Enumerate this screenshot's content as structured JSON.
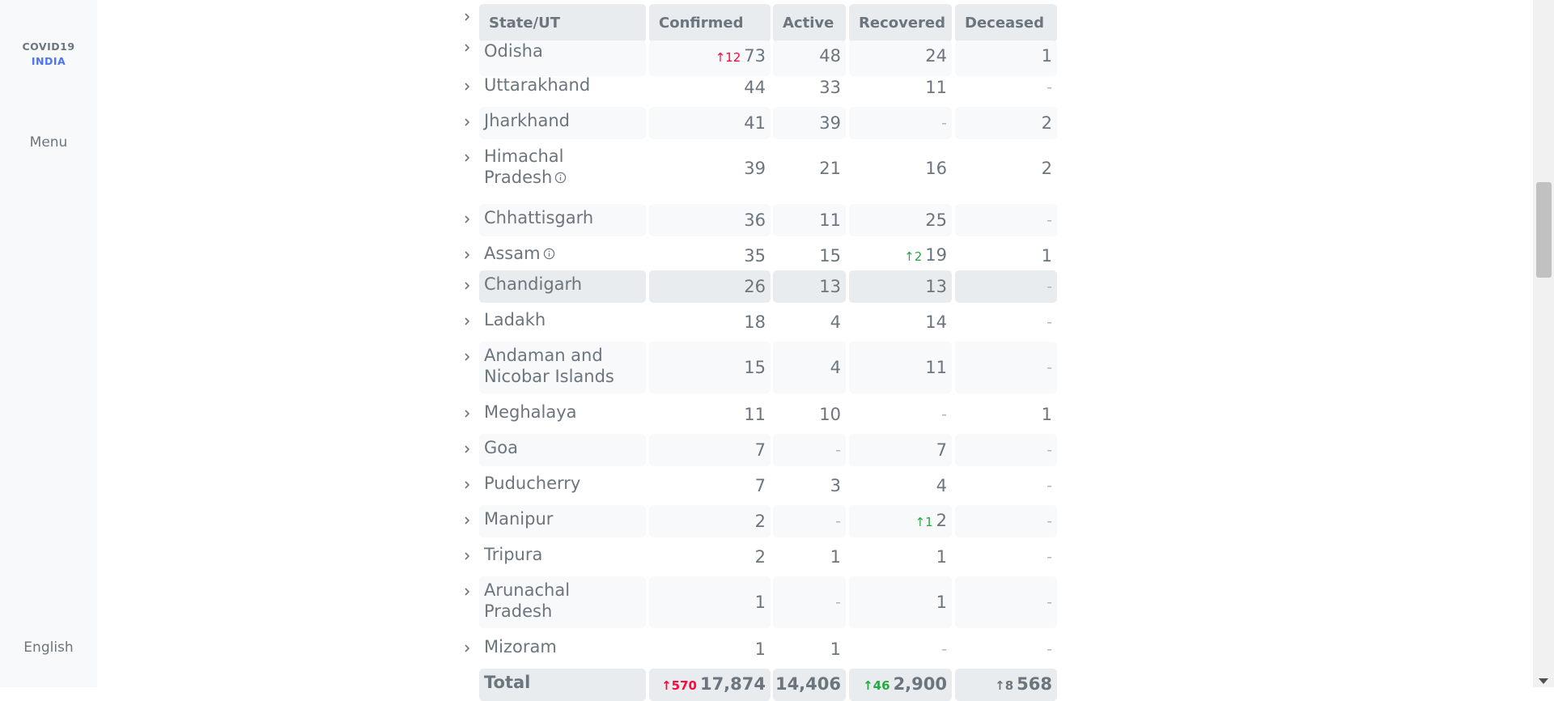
{
  "sidebar": {
    "brand_line1": "COVID19",
    "brand_line2": "INDIA",
    "menu_label": "Menu",
    "language_label": "English"
  },
  "table": {
    "headers": {
      "state": "State/UT",
      "confirmed": "Confirmed",
      "active": "Active",
      "recovered": "Recovered",
      "deceased": "Deceased"
    },
    "rows": [
      {
        "name_l1": "Odisha",
        "name_l2": "",
        "confirmed": "73",
        "confirmed_delta": "↑12",
        "active": "48",
        "recovered": "24",
        "recovered_delta": "",
        "deceased": "1",
        "deceased_delta": ""
      },
      {
        "name_l1": "Uttarakhand",
        "name_l2": "",
        "confirmed": "44",
        "confirmed_delta": "",
        "active": "33",
        "recovered": "11",
        "recovered_delta": "",
        "deceased": "-",
        "deceased_delta": ""
      },
      {
        "name_l1": "Jharkhand",
        "name_l2": "",
        "confirmed": "41",
        "confirmed_delta": "",
        "active": "39",
        "recovered": "-",
        "recovered_delta": "",
        "deceased": "2",
        "deceased_delta": ""
      },
      {
        "name_l1": "Himachal",
        "name_l2": "Pradesh",
        "confirmed": "39",
        "confirmed_delta": "",
        "active": "21",
        "recovered": "16",
        "recovered_delta": "",
        "deceased": "2",
        "deceased_delta": ""
      },
      {
        "name_l1": "Chhattisgarh",
        "name_l2": "",
        "confirmed": "36",
        "confirmed_delta": "",
        "active": "11",
        "recovered": "25",
        "recovered_delta": "",
        "deceased": "-",
        "deceased_delta": ""
      },
      {
        "name_l1": "Assam",
        "name_l2": "",
        "confirmed": "35",
        "confirmed_delta": "",
        "active": "15",
        "recovered": "19",
        "recovered_delta": "↑2",
        "deceased": "1",
        "deceased_delta": ""
      },
      {
        "name_l1": "Chandigarh",
        "name_l2": "",
        "confirmed": "26",
        "confirmed_delta": "",
        "active": "13",
        "recovered": "13",
        "recovered_delta": "",
        "deceased": "-",
        "deceased_delta": ""
      },
      {
        "name_l1": "Ladakh",
        "name_l2": "",
        "confirmed": "18",
        "confirmed_delta": "",
        "active": "4",
        "recovered": "14",
        "recovered_delta": "",
        "deceased": "-",
        "deceased_delta": ""
      },
      {
        "name_l1": "Andaman and",
        "name_l2": "Nicobar Islands",
        "confirmed": "15",
        "confirmed_delta": "",
        "active": "4",
        "recovered": "11",
        "recovered_delta": "",
        "deceased": "-",
        "deceased_delta": ""
      },
      {
        "name_l1": "Meghalaya",
        "name_l2": "",
        "confirmed": "11",
        "confirmed_delta": "",
        "active": "10",
        "recovered": "-",
        "recovered_delta": "",
        "deceased": "1",
        "deceased_delta": ""
      },
      {
        "name_l1": "Goa",
        "name_l2": "",
        "confirmed": "7",
        "confirmed_delta": "",
        "active": "-",
        "recovered": "7",
        "recovered_delta": "",
        "deceased": "-",
        "deceased_delta": ""
      },
      {
        "name_l1": "Puducherry",
        "name_l2": "",
        "confirmed": "7",
        "confirmed_delta": "",
        "active": "3",
        "recovered": "4",
        "recovered_delta": "",
        "deceased": "-",
        "deceased_delta": ""
      },
      {
        "name_l1": "Manipur",
        "name_l2": "",
        "confirmed": "2",
        "confirmed_delta": "",
        "active": "-",
        "recovered": "2",
        "recovered_delta": "↑1",
        "deceased": "-",
        "deceased_delta": ""
      },
      {
        "name_l1": "Tripura",
        "name_l2": "",
        "confirmed": "2",
        "confirmed_delta": "",
        "active": "1",
        "recovered": "1",
        "recovered_delta": "",
        "deceased": "-",
        "deceased_delta": ""
      },
      {
        "name_l1": "Arunachal",
        "name_l2": "Pradesh",
        "confirmed": "1",
        "confirmed_delta": "",
        "active": "-",
        "recovered": "1",
        "recovered_delta": "",
        "deceased": "-",
        "deceased_delta": ""
      },
      {
        "name_l1": "Mizoram",
        "name_l2": "",
        "confirmed": "1",
        "confirmed_delta": "",
        "active": "1",
        "recovered": "-",
        "recovered_delta": "",
        "deceased": "-",
        "deceased_delta": ""
      }
    ],
    "total": {
      "label": "Total",
      "confirmed": "17,874",
      "confirmed_delta": "↑570",
      "active": "14,406",
      "recovered": "2,900",
      "recovered_delta": "↑46",
      "deceased": "568",
      "deceased_delta": "↑8"
    }
  },
  "colors": {
    "confirmed_delta": "#ff073a",
    "recovered_delta": "#28a745",
    "deceased_delta": "#6c757d",
    "brand_accent": "#4c75f2"
  }
}
